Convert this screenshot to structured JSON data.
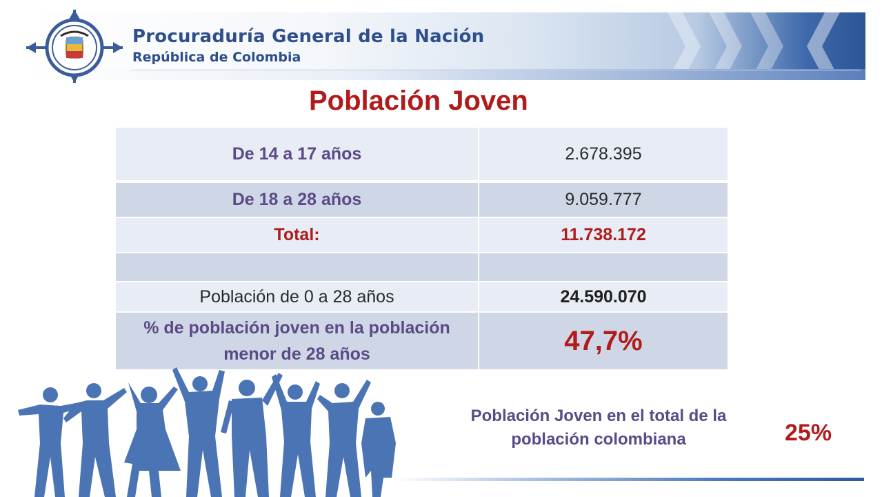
{
  "header": {
    "org_name": "Procuraduría General de la Nación",
    "org_subtitle": "República de Colombia"
  },
  "title": "Población Joven",
  "table": {
    "rows": [
      {
        "label": "De 14 a 17 años",
        "value": "2.678.395"
      },
      {
        "label": "De 18 a 28 años",
        "value": "9.059.777"
      },
      {
        "label": "Total:",
        "value": "11.738.172"
      },
      {
        "label": "",
        "value": ""
      },
      {
        "label": "Población de 0 a 28 años",
        "value": "24.590.070"
      },
      {
        "label": "% de población joven en la población menor de 28 años",
        "value": "47,7%"
      }
    ]
  },
  "footer": {
    "note": "Población Joven en el total de la población colombiana",
    "percentage": "25%"
  },
  "colors": {
    "title_red": "#b01c1c",
    "label_purple": "#5a4a86",
    "brand_blue": "#2e4f8c",
    "silhouette_blue": "#4a74b3"
  },
  "icons": {
    "seal": "coat-of-arms-seal-icon",
    "people": "dancing-people-silhouettes"
  }
}
